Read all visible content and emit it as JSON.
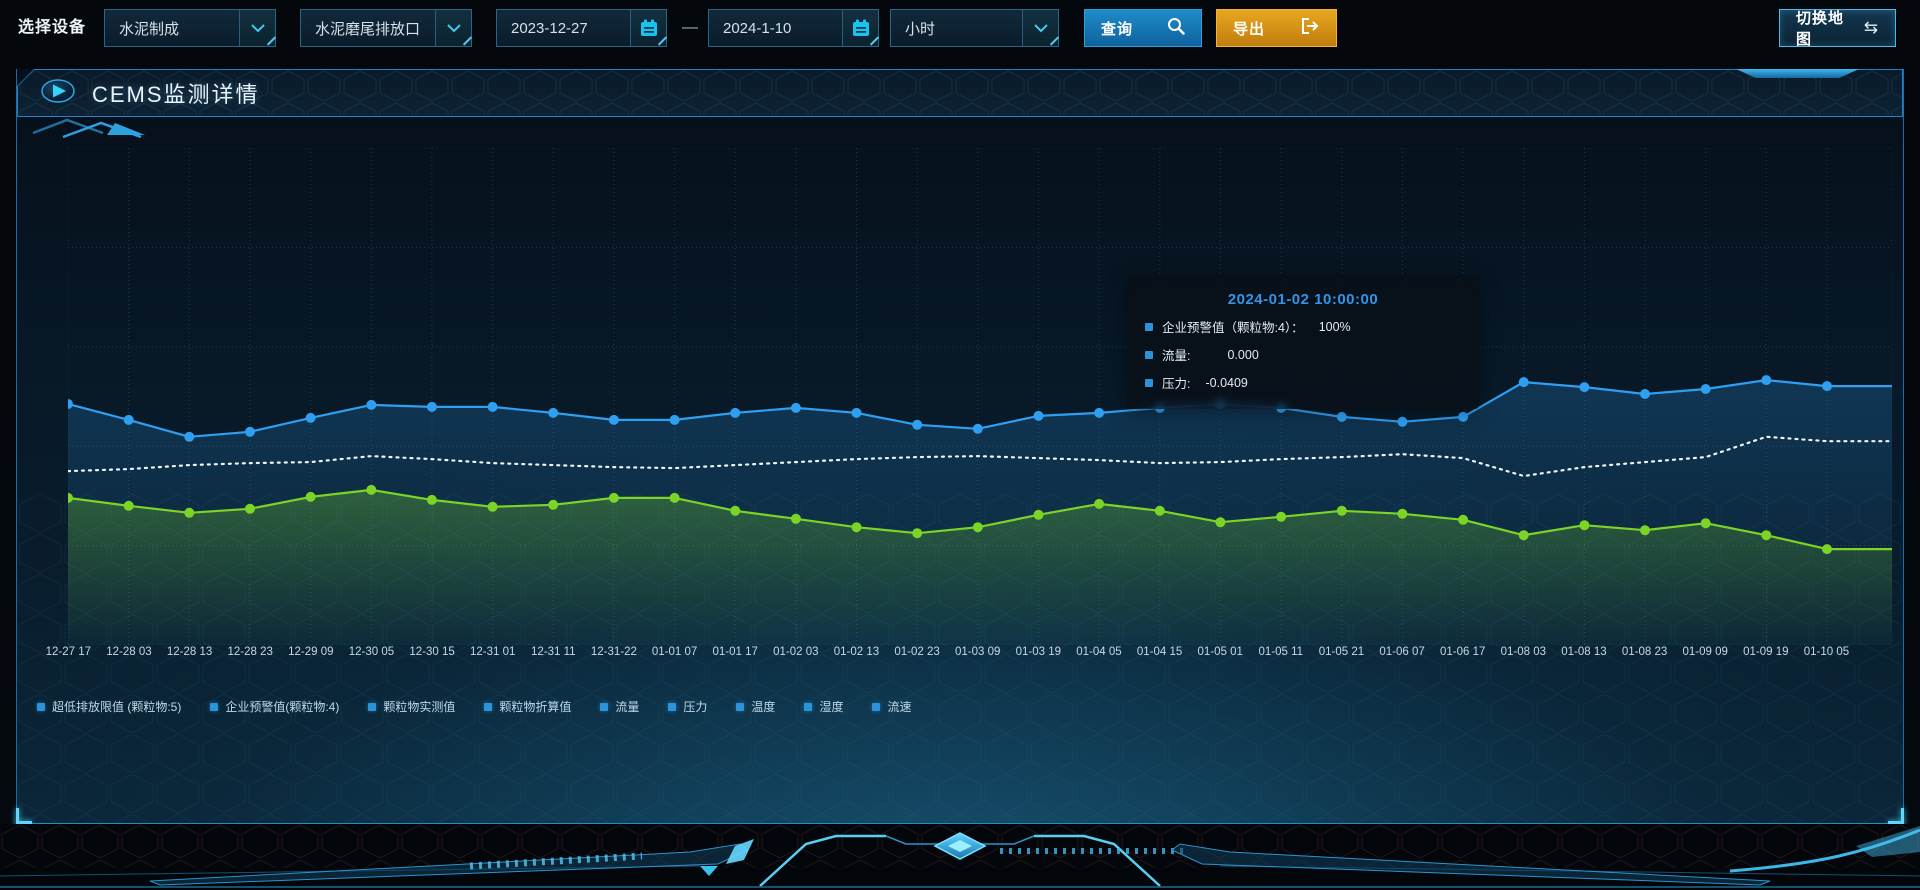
{
  "toolbar": {
    "device_label": "选择设备",
    "selects": [
      {
        "value": "水泥制成"
      },
      {
        "value": "水泥磨尾排放口"
      },
      {
        "value": "小时"
      }
    ],
    "date_start": "2023-12-27",
    "date_separator": "—",
    "date_end": "2024-1-10",
    "query_label": "查询",
    "export_label": "导出",
    "switch_map_label": "切换地图",
    "icons": {
      "swap": "⇆"
    }
  },
  "panel": {
    "title": "CEMS监测详情"
  },
  "tooltip": {
    "title": "2024-01-02 10:00:00",
    "items": [
      {
        "label": "企业预警值（颗粒物:4）：",
        "value": "100%"
      },
      {
        "label": "流量:",
        "value": "0.000"
      },
      {
        "label": "压力:",
        "value": "-0.0409"
      }
    ]
  },
  "legend": [
    "超低排放限值 (颗粒物:5)",
    "企业预警值(颗粒物:4)",
    "颗粒物实测值",
    "颗粒物折算值",
    "流量",
    "压力",
    "温度",
    "湿度",
    "流速"
  ],
  "chart_data": {
    "type": "line",
    "title": "",
    "xlabel": "",
    "ylabel": "",
    "ylim": [
      0,
      100
    ],
    "y_axis_visible": false,
    "grid": "dotted",
    "legend_position": "bottom",
    "categories": [
      "12-27 17",
      "12-28 03",
      "12-28 13",
      "12-28 23",
      "12-29 09",
      "12-30 05",
      "12-30 15",
      "12-31 01",
      "12-31 11",
      "12-31-22",
      "01-01 07",
      "01-01 17",
      "01-02 03",
      "01-02 13",
      "01-02 23",
      "01-03 09",
      "01-03 19",
      "01-04 05",
      "01-04 15",
      "01-05 01",
      "01-05 11",
      "01-05 21",
      "01-06 07",
      "01-06 17",
      "01-08 03",
      "01-08 13",
      "01-08 23",
      "01-09 09",
      "01-09 19",
      "01-10 05"
    ],
    "series": [
      {
        "name": "流量",
        "color": "#2f9ff2",
        "line_style": "solid",
        "show_points": true,
        "area": true,
        "values": [
          48.5,
          45.3,
          41.9,
          42.9,
          45.7,
          48.3,
          47.9,
          47.9,
          46.7,
          45.3,
          45.3,
          46.7,
          47.7,
          46.7,
          44.3,
          43.5,
          46.1,
          46.7,
          47.7,
          48.5,
          47.7,
          45.9,
          44.9,
          45.9,
          52.9,
          51.9,
          50.5,
          51.5,
          53.3,
          52.1
        ]
      },
      {
        "name": "企业预警值(颗粒物:4)",
        "color": "#eef6fa",
        "line_style": "dotted",
        "show_points": false,
        "area": false,
        "values": [
          35.0,
          35.4,
          36.2,
          36.6,
          36.8,
          38.0,
          37.4,
          36.6,
          36.2,
          35.8,
          35.6,
          36.2,
          36.8,
          37.4,
          37.8,
          38.0,
          37.6,
          37.2,
          36.6,
          36.8,
          37.4,
          37.8,
          38.4,
          37.6,
          34.0,
          35.8,
          36.8,
          37.8,
          41.9,
          41.0
        ]
      },
      {
        "name": "压力",
        "color": "#7bd426",
        "line_style": "solid",
        "show_points": true,
        "area": true,
        "values": [
          29.6,
          28.0,
          26.6,
          27.4,
          29.8,
          31.2,
          29.2,
          27.8,
          28.2,
          29.6,
          29.6,
          27.0,
          25.4,
          23.7,
          22.5,
          23.7,
          26.2,
          28.4,
          27.0,
          24.7,
          25.8,
          27.0,
          26.4,
          25.2,
          22.1,
          24.1,
          23.1,
          24.5,
          22.1,
          19.3
        ]
      }
    ]
  }
}
